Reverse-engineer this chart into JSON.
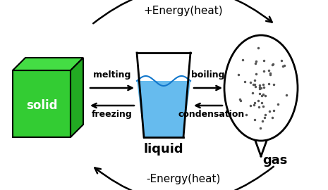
{
  "bg_color": "#ffffff",
  "solid_label": {
    "text": "solid",
    "fontsize": 12,
    "fontweight": "bold",
    "color": "white"
  },
  "liquid_cup_color": "#66bbee",
  "liquid_label": {
    "text": "liquid",
    "fontsize": 13,
    "fontweight": "bold"
  },
  "gas_label": {
    "text": "gas",
    "fontsize": 13,
    "fontweight": "bold"
  },
  "top_arrow_label": {
    "text": "+Energy(heat)",
    "fontsize": 11
  },
  "bottom_arrow_label": {
    "text": "-Energy(heat)",
    "fontsize": 11
  },
  "melting_label": {
    "text": "melting",
    "fontsize": 9,
    "fontweight": "bold"
  },
  "freezing_label": {
    "text": "freezing",
    "fontsize": 9,
    "fontweight": "bold"
  },
  "boiling_label": {
    "text": "boiling",
    "fontsize": 9,
    "fontweight": "bold"
  },
  "condensation_label": {
    "text": "condensation",
    "fontsize": 9,
    "fontweight": "bold"
  },
  "arrow_color": "#000000",
  "arrow_linewidth": 1.8,
  "dot_color": "#555555"
}
